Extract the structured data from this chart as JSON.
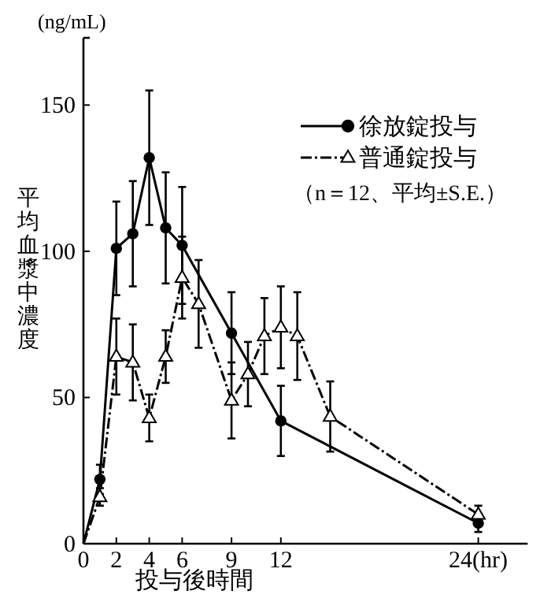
{
  "chart_data": {
    "type": "line",
    "xlabel": "投与後時間",
    "ylabel": "平均血漿中濃度",
    "annotations": [
      "(ng/mL)",
      "（n＝12、平均±S.E.）"
    ],
    "xlim": [
      0,
      27
    ],
    "ylim": [
      0,
      173
    ],
    "xticks": [
      0,
      2,
      4,
      6,
      9,
      12,
      {
        "value": 24,
        "label": "24(hr)"
      }
    ],
    "yticks": [
      0,
      50,
      100,
      150
    ],
    "legend": "top right",
    "grid": false,
    "series": [
      {
        "name": "徐放錠投与",
        "color": "#000000",
        "marker": "circle",
        "line_style": "solid",
        "x": [
          0,
          1,
          2,
          3,
          4,
          5,
          6,
          9,
          12,
          24
        ],
        "values": [
          0,
          22,
          101,
          106,
          132,
          108,
          102,
          72,
          42,
          7
        ],
        "errors": [
          null,
          5,
          16,
          18,
          23,
          19,
          20,
          14,
          12,
          3
        ]
      },
      {
        "name": "普通錠投与",
        "color": "#000000",
        "marker": "triangle",
        "line_style": "dashed",
        "x": [
          0,
          1,
          2,
          3,
          4,
          5,
          6,
          7,
          9,
          10,
          11,
          12,
          13,
          15,
          24
        ],
        "values": [
          0,
          16,
          64,
          62,
          43,
          64,
          91,
          82,
          49,
          58,
          71,
          74,
          71,
          43.5,
          10
        ],
        "errors": [
          null,
          3,
          13,
          13,
          8,
          9,
          14,
          15,
          13,
          11,
          13,
          14,
          15,
          12,
          3
        ]
      }
    ]
  }
}
